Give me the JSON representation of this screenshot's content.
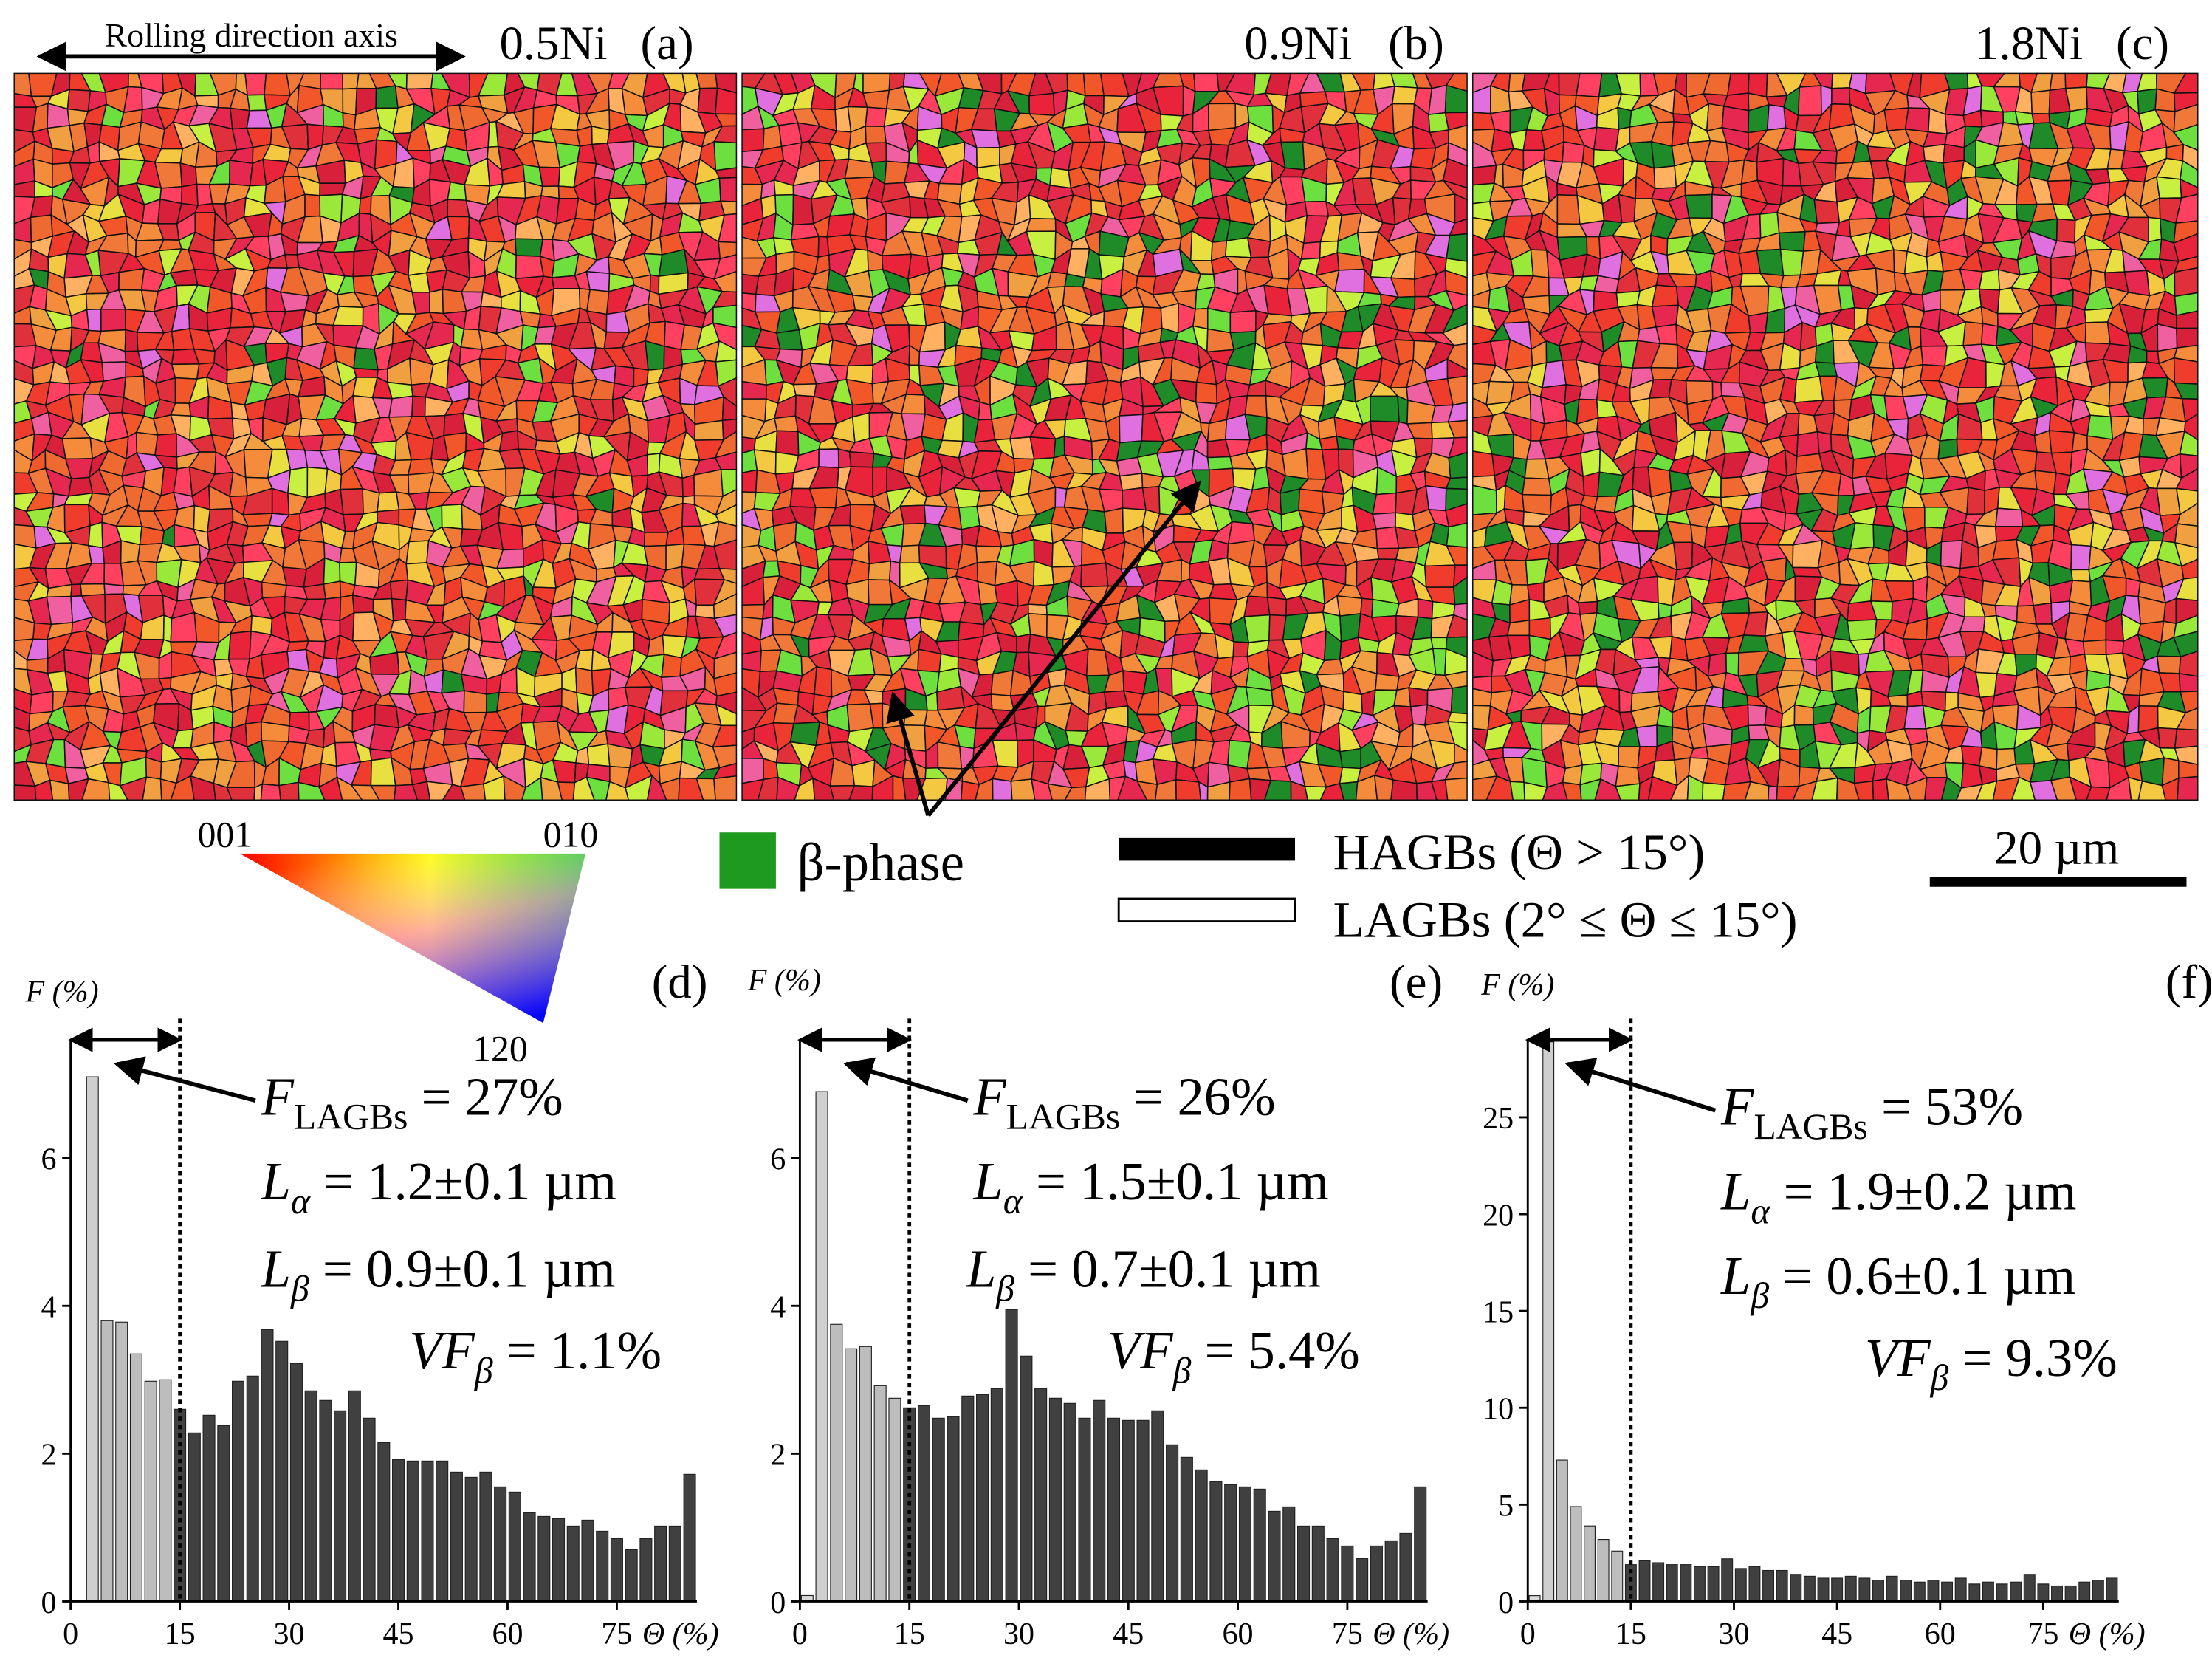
{
  "rolling_direction": "Rolling direction axis",
  "maps": [
    {
      "alloy": "0.5Ni",
      "label": "(a)"
    },
    {
      "alloy": "0.9Ni",
      "label": "(b)"
    },
    {
      "alloy": "1.8Ni",
      "label": "(c)"
    }
  ],
  "color_key": {
    "corners": [
      "001",
      "010",
      "120"
    ]
  },
  "legend": {
    "beta": "β-phase",
    "hagb": "HAGBs (Θ > 15°)",
    "lagb": "LAGBs (2° ≤ Θ ≤ 15°)",
    "scale_bar": "20 µm"
  },
  "chart_data": [
    {
      "type": "histogram",
      "label": "(d)",
      "y_label": "F (%)",
      "x_label": "Θ (%)",
      "bins": [
        0,
        2,
        4,
        6,
        8,
        10,
        12,
        14,
        16,
        18,
        20,
        22,
        24,
        26,
        28,
        30,
        32,
        34,
        36,
        38,
        40,
        42,
        44,
        46,
        48,
        50,
        52,
        54,
        56,
        58,
        60,
        62,
        64,
        66,
        68,
        70,
        72,
        74,
        76,
        78,
        80,
        82,
        84,
        86
      ],
      "values": [
        0,
        7.1,
        3.8,
        3.78,
        3.35,
        2.98,
        3.0,
        2.6,
        2.28,
        2.52,
        2.38,
        2.98,
        3.05,
        3.68,
        3.52,
        3.22,
        2.85,
        2.72,
        2.58,
        2.85,
        2.48,
        2.15,
        1.92,
        1.9,
        1.9,
        1.9,
        1.75,
        1.68,
        1.75,
        1.55,
        1.48,
        1.2,
        1.15,
        1.12,
        1.02,
        1.1,
        0.95,
        0.85,
        0.7,
        0.85,
        1.02,
        1.02,
        1.72
      ],
      "colors": [
        "#d9d9d9",
        "#cfcfcf",
        "#bdbdbd",
        "#bdbdbd",
        "#bdbdbd",
        "#bdbdbd",
        "#bdbdbd",
        "#404040",
        "#404040",
        "#404040",
        "#404040",
        "#404040",
        "#404040",
        "#404040",
        "#404040",
        "#404040",
        "#404040",
        "#404040",
        "#404040",
        "#404040",
        "#404040",
        "#404040",
        "#404040",
        "#404040",
        "#404040",
        "#404040",
        "#404040",
        "#404040",
        "#404040",
        "#404040",
        "#404040",
        "#404040",
        "#404040",
        "#404040",
        "#404040",
        "#404040",
        "#404040",
        "#404040",
        "#404040",
        "#404040",
        "#404040",
        "#404040",
        "#404040"
      ],
      "xlim": [
        0,
        86
      ],
      "ylim": [
        0,
        7.6
      ],
      "xticks": [
        0,
        15,
        30,
        45,
        60,
        75
      ],
      "yticks": [
        0,
        2,
        4,
        6
      ],
      "threshold": 15,
      "annotations": [
        {
          "symbol": "F",
          "subscript": "LAGBs",
          "text": " = 27%"
        },
        {
          "symbol": "L",
          "subscript": "α",
          "text": " = 1.2±0.1 µm"
        },
        {
          "symbol": "L",
          "subscript": "β",
          "text": " = 0.9±0.1 µm"
        },
        {
          "symbol": "VF",
          "subscript": "β",
          "text": " = 1.1%"
        }
      ]
    },
    {
      "type": "histogram",
      "label": "(e)",
      "y_label": "F (%)",
      "x_label": "Θ (%)",
      "bins": [
        0,
        2,
        4,
        6,
        8,
        10,
        12,
        14,
        16,
        18,
        20,
        22,
        24,
        26,
        28,
        30,
        32,
        34,
        36,
        38,
        40,
        42,
        44,
        46,
        48,
        50,
        52,
        54,
        56,
        58,
        60,
        62,
        64,
        66,
        68,
        70,
        72,
        74,
        76,
        78,
        80,
        82,
        84,
        86
      ],
      "values": [
        0.08,
        6.9,
        3.75,
        3.42,
        3.45,
        2.92,
        2.75,
        2.62,
        2.65,
        2.48,
        2.5,
        2.78,
        2.8,
        2.88,
        3.95,
        3.32,
        2.88,
        2.75,
        2.68,
        2.48,
        2.72,
        2.48,
        2.45,
        2.45,
        2.58,
        2.12,
        1.95,
        1.78,
        1.62,
        1.58,
        1.55,
        1.52,
        1.22,
        1.28,
        1.02,
        1.02,
        0.85,
        0.75,
        0.58,
        0.75,
        0.82,
        0.92,
        1.55
      ],
      "colors": [
        "#d9d9d9",
        "#cfcfcf",
        "#bdbdbd",
        "#bdbdbd",
        "#bdbdbd",
        "#bdbdbd",
        "#bdbdbd",
        "#404040",
        "#404040",
        "#404040",
        "#404040",
        "#404040",
        "#404040",
        "#404040",
        "#404040",
        "#404040",
        "#404040",
        "#404040",
        "#404040",
        "#404040",
        "#404040",
        "#404040",
        "#404040",
        "#404040",
        "#404040",
        "#404040",
        "#404040",
        "#404040",
        "#404040",
        "#404040",
        "#404040",
        "#404040",
        "#404040",
        "#404040",
        "#404040",
        "#404040",
        "#404040",
        "#404040",
        "#404040",
        "#404040",
        "#404040",
        "#404040",
        "#404040"
      ],
      "xlim": [
        0,
        86
      ],
      "ylim": [
        0,
        7.6
      ],
      "xticks": [
        0,
        15,
        30,
        45,
        60,
        75
      ],
      "yticks": [
        0,
        2,
        4,
        6
      ],
      "threshold": 15,
      "annotations": [
        {
          "symbol": "F",
          "subscript": "LAGBs",
          "text": " = 26%"
        },
        {
          "symbol": "L",
          "subscript": "α",
          "text": " = 1.5±0.1 µm"
        },
        {
          "symbol": "L",
          "subscript": "β",
          "text": " = 0.7±0.1 µm"
        },
        {
          "symbol": "VF",
          "subscript": "β",
          "text": " = 5.4%"
        }
      ]
    },
    {
      "type": "histogram",
      "label": "(f)",
      "y_label": "F (%)",
      "x_label": "Θ (%)",
      "bins": [
        0,
        2,
        4,
        6,
        8,
        10,
        12,
        14,
        16,
        18,
        20,
        22,
        24,
        26,
        28,
        30,
        32,
        34,
        36,
        38,
        40,
        42,
        44,
        46,
        48,
        50,
        52,
        54,
        56,
        58,
        60,
        62,
        64,
        66,
        68,
        70,
        72,
        74,
        76,
        78,
        80,
        82,
        84,
        86
      ],
      "values": [
        0.3,
        28.9,
        7.3,
        4.9,
        3.9,
        3.2,
        2.6,
        1.9,
        2.1,
        2.0,
        1.9,
        1.9,
        1.8,
        1.8,
        2.2,
        1.7,
        1.8,
        1.6,
        1.6,
        1.4,
        1.3,
        1.2,
        1.2,
        1.3,
        1.2,
        1.1,
        1.3,
        1.1,
        1.0,
        1.1,
        1.0,
        1.2,
        0.9,
        1.0,
        0.9,
        1.0,
        1.4,
        0.9,
        0.8,
        0.8,
        1.0,
        1.1,
        1.2
      ],
      "colors": [
        "#d9d9d9",
        "#cfcfcf",
        "#bdbdbd",
        "#bdbdbd",
        "#bdbdbd",
        "#bdbdbd",
        "#bdbdbd",
        "#404040",
        "#404040",
        "#404040",
        "#404040",
        "#404040",
        "#404040",
        "#404040",
        "#404040",
        "#404040",
        "#404040",
        "#404040",
        "#404040",
        "#404040",
        "#404040",
        "#404040",
        "#404040",
        "#404040",
        "#404040",
        "#404040",
        "#404040",
        "#404040",
        "#404040",
        "#404040",
        "#404040",
        "#404040",
        "#404040",
        "#404040",
        "#404040",
        "#404040",
        "#404040",
        "#404040",
        "#404040",
        "#404040",
        "#404040",
        "#404040",
        "#404040"
      ],
      "xlim": [
        0,
        86
      ],
      "ylim": [
        0,
        29
      ],
      "xticks": [
        0,
        15,
        30,
        45,
        60,
        75
      ],
      "yticks": [
        0,
        5,
        10,
        15,
        20,
        25
      ],
      "threshold": 15,
      "annotations": [
        {
          "symbol": "F",
          "subscript": "LAGBs",
          "text": " = 53%"
        },
        {
          "symbol": "L",
          "subscript": "α",
          "text": " = 1.9±0.2 µm"
        },
        {
          "symbol": "L",
          "subscript": "β",
          "text": " = 0.6±0.1 µm"
        },
        {
          "symbol": "VF",
          "subscript": "β",
          "text": " = 9.3%"
        }
      ]
    }
  ]
}
